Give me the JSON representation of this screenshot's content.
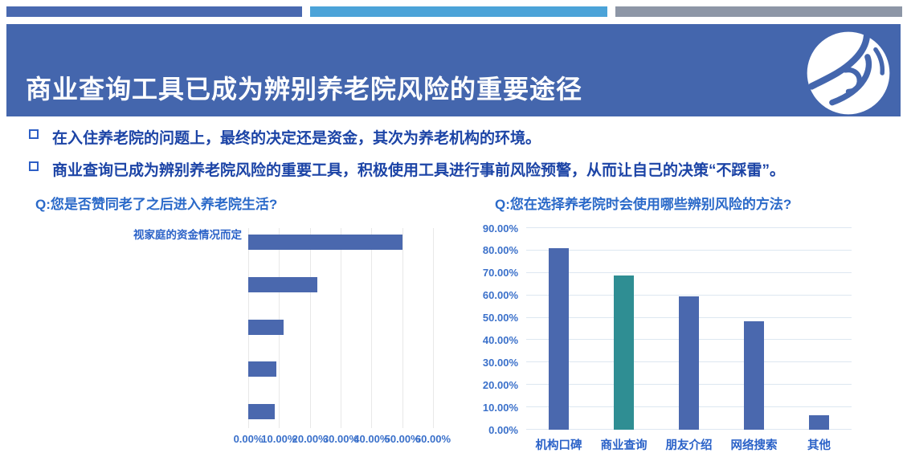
{
  "header": {
    "title": "商业查询工具已成为辨别养老院风险的重要途径",
    "background": "#4466ad",
    "logo": "swirl-eye-logo"
  },
  "top_bars": {
    "colors": [
      "#4969b0",
      "#4ba3d8",
      "#8d96a6"
    ]
  },
  "bullets": [
    {
      "text": "在入住养老院的问题上，最终的决定还是资金，其次为养老机构的环境。"
    },
    {
      "text": "商业查询已成为辨别养老院风险的重要工具，积极使用工具进行事前风险预警，从而让自己的决策“不踩雷”。"
    }
  ],
  "colors": {
    "bar_blue": "#4a68ae",
    "bar_teal": "#2f8e93",
    "bullet_text": "#1c44a6",
    "axis_text": "#3a70ca",
    "chart_title_text": "#2b6ac9"
  },
  "chart_data": [
    {
      "type": "bar",
      "orientation": "horizontal",
      "title": "Q:您是否赞同老了之后进入养老院生活?",
      "categories": [
        "视家庭的资金情况而定",
        "",
        "",
        "",
        ""
      ],
      "values": [
        50,
        22.5,
        11.5,
        9,
        8.5
      ],
      "xlim": [
        0,
        60
      ],
      "x_ticks": [
        "0.00%",
        "10.00%",
        "20.00%",
        "30.00%",
        "40.00%",
        "50.00%",
        "60.00%"
      ],
      "bar_color": "#4a68ae",
      "grid": "vertical",
      "legend": "none"
    },
    {
      "type": "bar",
      "orientation": "vertical",
      "title": "Q:您在选择养老院时会使用哪些辨别风险的方法?",
      "categories": [
        "机构口碑",
        "商业查询",
        "朋友介绍",
        "网络搜索",
        "其他"
      ],
      "values": [
        81,
        69,
        59.5,
        48.5,
        6.5
      ],
      "ylim": [
        0,
        90
      ],
      "y_ticks": [
        "0.00%",
        "10.00%",
        "20.00%",
        "30.00%",
        "40.00%",
        "50.00%",
        "60.00%",
        "70.00%",
        "80.00%",
        "90.00%"
      ],
      "bar_colors": [
        "#4a68ae",
        "#2f8e93",
        "#4a68ae",
        "#4a68ae",
        "#4a68ae"
      ],
      "highlighted_category": "商业查询",
      "grid": "horizontal",
      "legend": "none"
    }
  ]
}
